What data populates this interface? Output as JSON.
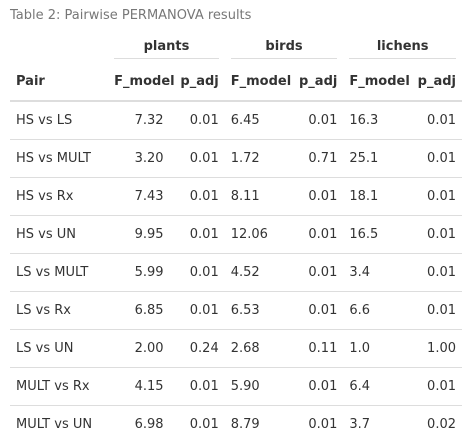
{
  "caption": "Table 2: Pairwise PERMANOVA results",
  "groups": [
    "plants",
    "birds",
    "lichens"
  ],
  "columns": [
    "Pair",
    "F_model",
    "p_adj",
    "F_model",
    "p_adj",
    "F_model",
    "p_adj"
  ],
  "rows": [
    [
      "HS vs LS",
      "7.32",
      "0.01",
      "6.45",
      "0.01",
      "16.3",
      "0.01"
    ],
    [
      "HS vs MULT",
      "3.20",
      "0.01",
      "1.72",
      "0.71",
      "25.1",
      "0.01"
    ],
    [
      "HS vs Rx",
      "7.43",
      "0.01",
      "8.11",
      "0.01",
      "18.1",
      "0.01"
    ],
    [
      "HS vs UN",
      "9.95",
      "0.01",
      "12.06",
      "0.01",
      "16.5",
      "0.01"
    ],
    [
      "LS vs MULT",
      "5.99",
      "0.01",
      "4.52",
      "0.01",
      "3.4",
      "0.01"
    ],
    [
      "LS vs Rx",
      "6.85",
      "0.01",
      "6.53",
      "0.01",
      "6.6",
      "0.01"
    ],
    [
      "LS vs UN",
      "2.00",
      "0.24",
      "2.68",
      "0.11",
      "1.0",
      "1.00"
    ],
    [
      "MULT vs Rx",
      "4.15",
      "0.01",
      "5.90",
      "0.01",
      "6.4",
      "0.01"
    ],
    [
      "MULT vs UN",
      "6.98",
      "0.01",
      "8.79",
      "0.01",
      "3.7",
      "0.02"
    ]
  ]
}
